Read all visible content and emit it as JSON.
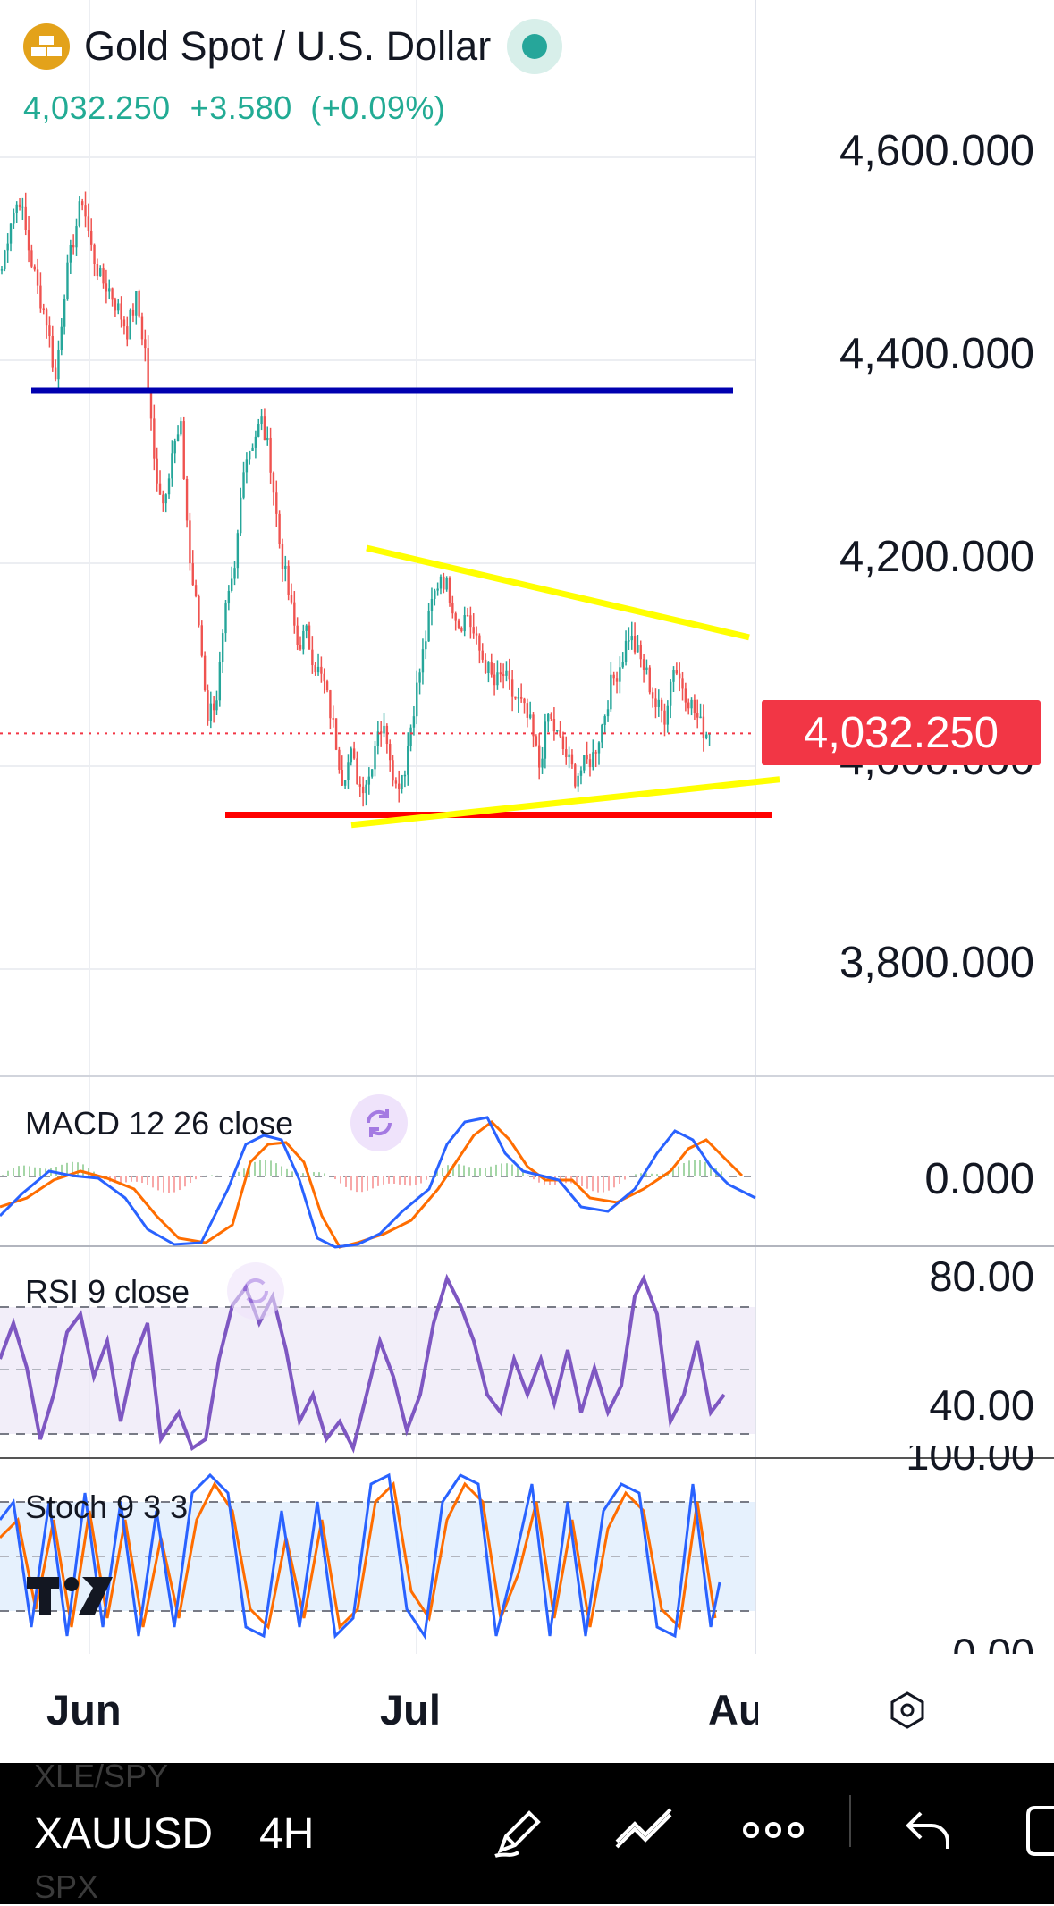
{
  "header": {
    "symbol_name": "Gold Spot / U.S. Dollar",
    "last_price": "4,032.250",
    "change": "+3.580",
    "change_percent": "(+0.09%)"
  },
  "price_axis": {
    "labels": [
      "4,600.000",
      "4,400.000",
      "4,200.000",
      "4,000.000",
      "3,800.000"
    ],
    "current_price_label": "4,032.250"
  },
  "indicators": {
    "macd": {
      "label": "MACD 12 26 close",
      "axis_label": "0.000"
    },
    "rsi": {
      "label": "RSI 9 close",
      "axis_labels": [
        "80.00",
        "40.00"
      ]
    },
    "stoch": {
      "label": "Stoch 9 3 3",
      "axis_labels": [
        "100.00",
        "0.00"
      ]
    }
  },
  "time_axis": {
    "labels": [
      "Jun",
      "Jul",
      "Au"
    ]
  },
  "toolbar": {
    "symbol": "XAUUSD",
    "timeframe": "4H",
    "ghost_above": "XLE/SPY",
    "ghost_below": "SPX"
  },
  "colors": {
    "up": "#26a69a",
    "down": "#ef5350",
    "support_line": "#ff0000",
    "resistance_line": "#0000b0",
    "trendline": "#ffff00",
    "last_price_bg": "#f23645",
    "macd_line": "#2962ff",
    "signal_line": "#ff6d00",
    "rsi_line": "#7e57c2"
  },
  "icons": [
    "gold-bars-icon",
    "live-status-icon",
    "cycle-icon",
    "tradingview-logo-icon",
    "settings-icon",
    "pencil-icon",
    "trend-tool-icon",
    "more-icon",
    "undo-icon",
    "fullscreen-icon"
  ],
  "chart_data": {
    "type": "candlestick",
    "title": "Gold Spot / U.S. Dollar",
    "timeframe": "4H",
    "ylim": [
      3750,
      4650
    ],
    "y_ticks": [
      4600,
      4400,
      4200,
      4000,
      3800
    ],
    "x_ticks": [
      "Jun",
      "Jul",
      "Au"
    ],
    "last_price": 4032.25,
    "price_path": [
      [
        0,
        4490
      ],
      [
        1,
        4540
      ],
      [
        2,
        4560
      ],
      [
        3,
        4510
      ],
      [
        4,
        4470
      ],
      [
        5,
        4440
      ],
      [
        6,
        4380
      ],
      [
        7,
        4470
      ],
      [
        8,
        4520
      ],
      [
        9,
        4560
      ],
      [
        10,
        4510
      ],
      [
        11,
        4480
      ],
      [
        12,
        4470
      ],
      [
        13,
        4450
      ],
      [
        14,
        4430
      ],
      [
        15,
        4460
      ],
      [
        16,
        4410
      ],
      [
        17,
        4300
      ],
      [
        18,
        4260
      ],
      [
        19,
        4310
      ],
      [
        20,
        4330
      ],
      [
        21,
        4200
      ],
      [
        22,
        4140
      ],
      [
        23,
        4050
      ],
      [
        24,
        4070
      ],
      [
        25,
        4150
      ],
      [
        26,
        4190
      ],
      [
        27,
        4300
      ],
      [
        28,
        4320
      ],
      [
        29,
        4340
      ],
      [
        30,
        4300
      ],
      [
        31,
        4220
      ],
      [
        32,
        4170
      ],
      [
        33,
        4120
      ],
      [
        34,
        4130
      ],
      [
        35,
        4100
      ],
      [
        36,
        4080
      ],
      [
        37,
        4040
      ],
      [
        38,
        3990
      ],
      [
        39,
        4010
      ],
      [
        40,
        3980
      ],
      [
        41,
        3990
      ],
      [
        42,
        4040
      ],
      [
        43,
        4030
      ],
      [
        44,
        3980
      ],
      [
        45,
        4000
      ],
      [
        46,
        4060
      ],
      [
        47,
        4110
      ],
      [
        48,
        4160
      ],
      [
        49,
        4190
      ],
      [
        50,
        4170
      ],
      [
        51,
        4140
      ],
      [
        52,
        4150
      ],
      [
        53,
        4120
      ],
      [
        54,
        4100
      ],
      [
        55,
        4080
      ],
      [
        56,
        4090
      ],
      [
        57,
        4070
      ],
      [
        58,
        4060
      ],
      [
        59,
        4040
      ],
      [
        60,
        4000
      ],
      [
        61,
        4050
      ],
      [
        62,
        4030
      ],
      [
        63,
        4010
      ],
      [
        64,
        3990
      ],
      [
        65,
        4000
      ],
      [
        66,
        4010
      ],
      [
        67,
        4040
      ],
      [
        68,
        4080
      ],
      [
        69,
        4100
      ],
      [
        70,
        4130
      ],
      [
        71,
        4110
      ],
      [
        72,
        4090
      ],
      [
        73,
        4060
      ],
      [
        74,
        4050
      ],
      [
        75,
        4100
      ],
      [
        76,
        4080
      ],
      [
        77,
        4060
      ],
      [
        78,
        4040
      ],
      [
        79,
        4030
      ]
    ],
    "horizontal_lines": [
      {
        "name": "resistance",
        "value": 4370
      },
      {
        "name": "support",
        "value": 3952
      }
    ],
    "trendlines": [
      {
        "name": "upper",
        "from": [
          35,
          4215
        ],
        "to": [
          79,
          4127
        ]
      },
      {
        "name": "lower",
        "from": [
          35,
          3942
        ],
        "to": [
          79,
          3987
        ]
      }
    ]
  }
}
